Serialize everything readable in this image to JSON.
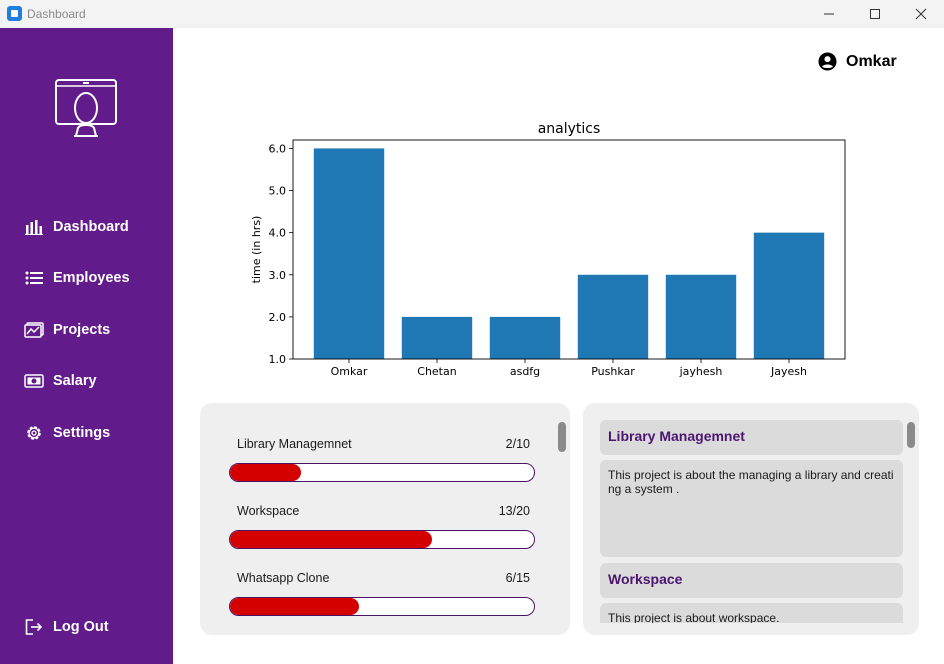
{
  "window": {
    "title": "Dashboard"
  },
  "sidebar": {
    "items": [
      {
        "label": "Dashboard",
        "icon": "bar-chart-icon"
      },
      {
        "label": "Employees",
        "icon": "list-icon"
      },
      {
        "label": "Projects",
        "icon": "projects-icon"
      },
      {
        "label": "Salary",
        "icon": "money-icon"
      },
      {
        "label": "Settings",
        "icon": "gear-icon"
      }
    ],
    "logout_label": "Log Out",
    "bg_color": "#621b8a"
  },
  "header": {
    "user_name": "Omkar"
  },
  "chart_data": {
    "type": "bar",
    "title": "analytics",
    "xlabel": "",
    "ylabel": "time (in hrs)",
    "categories": [
      "Omkar",
      "Chetan",
      "asdfg",
      "Pushkar",
      "jayhesh",
      "Jayesh"
    ],
    "values": [
      6,
      2,
      2,
      3,
      3,
      4
    ],
    "ylim": [
      1,
      6.2
    ],
    "yticks": [
      "1.0",
      "2.0",
      "3.0",
      "4.0",
      "5.0",
      "6.0"
    ],
    "bar_color": "#1f77b4",
    "grid": false
  },
  "progress": {
    "items": [
      {
        "title": "Library Managemnet",
        "count": "2/10",
        "fraction": 0.235
      },
      {
        "title": "Workspace",
        "count": "13/20",
        "fraction": 0.665
      },
      {
        "title": "Whatsapp Clone",
        "count": "6/15",
        "fraction": 0.425
      }
    ],
    "fill_color": "#d40000"
  },
  "descriptions": {
    "items": [
      {
        "title": "Library Managemnet",
        "text": "This project is about the managing a library and creating  a system ."
      },
      {
        "title": "Workspace",
        "text": "This project is about workspace."
      }
    ]
  }
}
